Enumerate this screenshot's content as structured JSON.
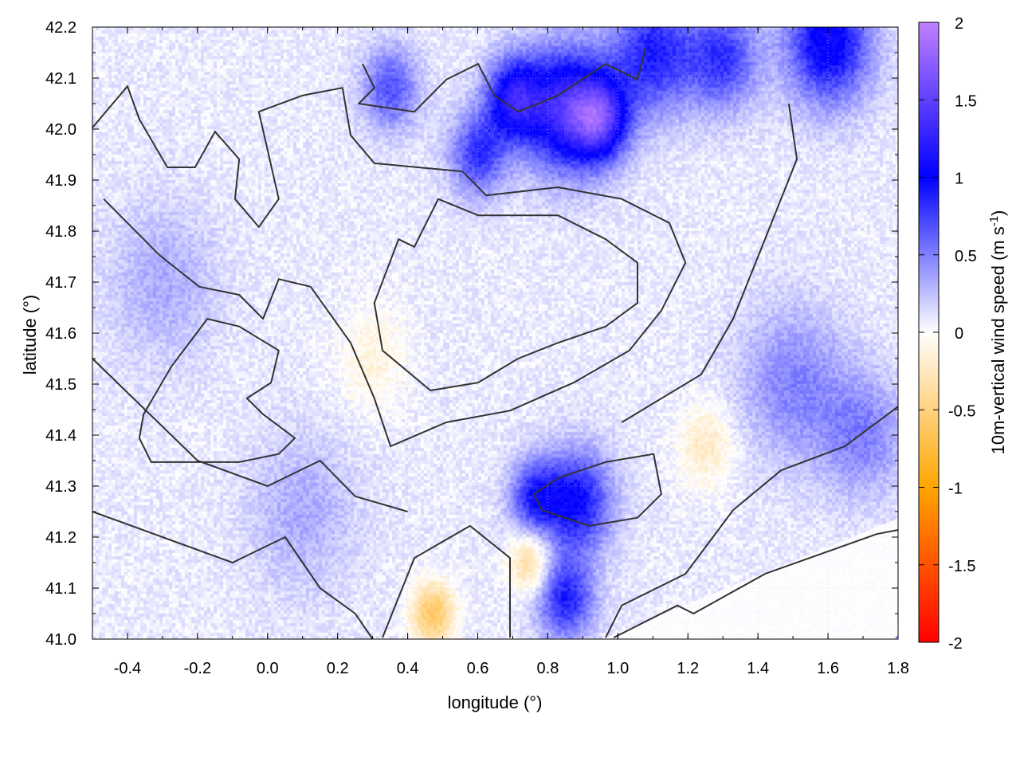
{
  "chart_data": {
    "type": "heatmap",
    "xlabel": "longitude (°)",
    "ylabel": "latitude (°)",
    "colorbar_label": "10m-vertical wind speed (m s",
    "colorbar_label_sup": "-1",
    "colorbar_label_end": ")",
    "xlim": [
      -0.5,
      1.8
    ],
    "ylim": [
      41.0,
      42.2
    ],
    "clim": [
      -2,
      2
    ],
    "grid": true,
    "xticks": [
      "-0.4",
      "-0.2",
      "0.0",
      "0.2",
      "0.4",
      "0.6",
      "0.8",
      "1.0",
      "1.2",
      "1.4",
      "1.6",
      "1.8"
    ],
    "xtick_values": [
      -0.4,
      -0.2,
      0.0,
      0.2,
      0.4,
      0.6,
      0.8,
      1.0,
      1.2,
      1.4,
      1.6,
      1.8
    ],
    "yticks": [
      "41.0",
      "41.1",
      "41.2",
      "41.3",
      "41.4",
      "41.5",
      "41.6",
      "41.7",
      "41.8",
      "41.9",
      "42.0",
      "42.1",
      "42.2"
    ],
    "ytick_values": [
      41.0,
      41.1,
      41.2,
      41.3,
      41.4,
      41.5,
      41.6,
      41.7,
      41.8,
      41.9,
      42.0,
      42.1,
      42.2
    ],
    "colorbar_ticks": [
      "2",
      "1.5",
      "1",
      "0.5",
      "0",
      "-0.5",
      "-1",
      "-1.5",
      "-2"
    ],
    "colorbar_tick_values": [
      2,
      1.5,
      1,
      0.5,
      0,
      -0.5,
      -1,
      -1.5,
      -2
    ],
    "colormap": [
      {
        "value": -2,
        "color": "#ff0000"
      },
      {
        "value": -1,
        "color": "#ffa500"
      },
      {
        "value": 0,
        "color": "#ffffff"
      },
      {
        "value": 1,
        "color": "#0000ff"
      },
      {
        "value": 2,
        "color": "#bf80ff"
      }
    ],
    "contour_color": "#333333",
    "field_features": [
      {
        "lon": 0.85,
        "lat": 42.04,
        "value": 1.2,
        "extent": 0.12
      },
      {
        "lon": 0.7,
        "lat": 42.06,
        "value": 1.0,
        "extent": 0.08
      },
      {
        "lon": 0.95,
        "lat": 42.02,
        "value": 1.1,
        "extent": 0.08
      },
      {
        "lon": 1.1,
        "lat": 42.15,
        "value": 0.8,
        "extent": 0.12
      },
      {
        "lon": 1.3,
        "lat": 42.14,
        "value": 0.7,
        "extent": 0.1
      },
      {
        "lon": 1.6,
        "lat": 42.17,
        "value": 1.0,
        "extent": 0.12
      },
      {
        "lon": 0.35,
        "lat": 42.08,
        "value": 0.6,
        "extent": 0.08
      },
      {
        "lon": 0.6,
        "lat": 41.95,
        "value": 0.7,
        "extent": 0.08
      },
      {
        "lon": 0.88,
        "lat": 41.27,
        "value": 0.9,
        "extent": 0.1
      },
      {
        "lon": 0.76,
        "lat": 41.28,
        "value": 0.7,
        "extent": 0.07
      },
      {
        "lon": 0.85,
        "lat": 41.08,
        "value": 0.8,
        "extent": 0.08
      },
      {
        "lon": 1.5,
        "lat": 41.5,
        "value": 0.4,
        "extent": 0.15
      },
      {
        "lon": 1.7,
        "lat": 41.4,
        "value": 0.4,
        "extent": 0.12
      },
      {
        "lon": -0.3,
        "lat": 41.7,
        "value": 0.25,
        "extent": 0.15
      },
      {
        "lon": 0.1,
        "lat": 41.25,
        "value": 0.25,
        "extent": 0.15
      },
      {
        "lon": 0.47,
        "lat": 41.05,
        "value": -0.7,
        "extent": 0.06
      },
      {
        "lon": 0.75,
        "lat": 41.15,
        "value": -0.5,
        "extent": 0.06
      },
      {
        "lon": 0.3,
        "lat": 41.55,
        "value": -0.2,
        "extent": 0.1
      },
      {
        "lon": 1.25,
        "lat": 41.38,
        "value": -0.3,
        "extent": 0.08
      }
    ],
    "contours": [
      [
        [
          0.328,
          41.566
        ],
        [
          0.305,
          41.659
        ],
        [
          0.374,
          41.784
        ],
        [
          0.419,
          41.769
        ],
        [
          0.487,
          41.863
        ],
        [
          0.601,
          41.831
        ],
        [
          0.829,
          41.831
        ],
        [
          0.965,
          41.784
        ],
        [
          1.056,
          41.738
        ],
        [
          1.056,
          41.659
        ],
        [
          0.965,
          41.613
        ],
        [
          0.829,
          41.581
        ],
        [
          0.715,
          41.55
        ],
        [
          0.601,
          41.503
        ],
        [
          0.465,
          41.4875
        ],
        [
          0.328,
          41.566
        ]
      ],
      [
        [
          -0.5,
          42.003
        ],
        [
          -0.4,
          42.084
        ],
        [
          -0.366,
          42.019
        ],
        [
          -0.286,
          41.925
        ],
        [
          -0.207,
          41.925
        ],
        [
          -0.15,
          41.995
        ],
        [
          -0.081,
          41.941
        ],
        [
          -0.093,
          41.863
        ],
        [
          -0.025,
          41.808
        ],
        [
          0.032,
          41.863
        ],
        [
          -0.025,
          42.034
        ],
        [
          0.1,
          42.066
        ],
        [
          0.214,
          42.081
        ],
        [
          0.237,
          41.988
        ],
        [
          0.305,
          41.933
        ],
        [
          0.556,
          41.917
        ],
        [
          0.624,
          41.87
        ],
        [
          0.829,
          41.886
        ],
        [
          1.011,
          41.863
        ],
        [
          1.147,
          41.816
        ],
        [
          1.193,
          41.738
        ],
        [
          1.124,
          41.644
        ],
        [
          1.033,
          41.566
        ],
        [
          0.874,
          41.503
        ],
        [
          0.692,
          41.448
        ],
        [
          0.51,
          41.425
        ],
        [
          0.351,
          41.378
        ],
        [
          0.305,
          41.472
        ],
        [
          0.237,
          41.581
        ],
        [
          0.123,
          41.691
        ],
        [
          0.032,
          41.706
        ],
        [
          -0.013,
          41.628
        ],
        [
          -0.081,
          41.675
        ],
        [
          -0.195,
          41.691
        ],
        [
          -0.309,
          41.753
        ],
        [
          -0.468,
          41.863
        ]
      ],
      [
        [
          -0.354,
          41.441
        ],
        [
          -0.275,
          41.534
        ],
        [
          -0.172,
          41.628
        ],
        [
          -0.081,
          41.613
        ],
        [
          0.032,
          41.566
        ],
        [
          0.01,
          41.503
        ],
        [
          -0.059,
          41.472
        ],
        [
          -0.013,
          41.441
        ],
        [
          0.078,
          41.394
        ],
        [
          0.032,
          41.363
        ],
        [
          -0.081,
          41.347
        ],
        [
          -0.218,
          41.347
        ],
        [
          -0.332,
          41.347
        ],
        [
          -0.366,
          41.394
        ],
        [
          -0.354,
          41.441
        ]
      ],
      [
        [
          0.965,
          41.003
        ],
        [
          1.011,
          41.066
        ],
        [
          1.193,
          41.128
        ],
        [
          1.329,
          41.253
        ],
        [
          1.466,
          41.331
        ],
        [
          1.648,
          41.378
        ],
        [
          1.8,
          41.456
        ]
      ],
      [
        [
          0.988,
          41.003
        ],
        [
          1.17,
          41.066
        ],
        [
          1.216,
          41.05
        ],
        [
          1.42,
          41.128
        ],
        [
          1.739,
          41.206
        ],
        [
          1.8,
          41.214
        ]
      ],
      [
        [
          0.271,
          42.128
        ],
        [
          0.305,
          42.081
        ],
        [
          0.26,
          42.05
        ],
        [
          0.419,
          42.034
        ],
        [
          0.51,
          42.097
        ],
        [
          0.601,
          42.128
        ],
        [
          0.647,
          42.066
        ],
        [
          0.715,
          42.034
        ],
        [
          0.829,
          42.066
        ],
        [
          0.965,
          42.128
        ],
        [
          1.056,
          42.097
        ],
        [
          1.079,
          42.159
        ]
      ],
      [
        [
          0.76,
          41.284
        ],
        [
          0.829,
          41.316
        ],
        [
          0.965,
          41.347
        ],
        [
          1.102,
          41.363
        ],
        [
          1.124,
          41.284
        ],
        [
          1.056,
          41.238
        ],
        [
          0.919,
          41.222
        ],
        [
          0.783,
          41.253
        ],
        [
          0.76,
          41.284
        ]
      ],
      [
        [
          0.328,
          41.003
        ],
        [
          0.419,
          41.159
        ],
        [
          0.578,
          41.222
        ],
        [
          0.692,
          41.159
        ],
        [
          0.692,
          41.003
        ]
      ],
      [
        [
          1.488,
          42.05
        ],
        [
          1.511,
          41.941
        ],
        [
          1.42,
          41.784
        ],
        [
          1.329,
          41.628
        ],
        [
          1.238,
          41.519
        ],
        [
          1.011,
          41.425
        ]
      ],
      [
        [
          -0.5,
          41.25
        ],
        [
          -0.3,
          41.2
        ],
        [
          -0.1,
          41.15
        ],
        [
          0.05,
          41.2
        ],
        [
          0.15,
          41.1
        ],
        [
          0.25,
          41.05
        ],
        [
          0.3,
          41.0
        ]
      ],
      [
        [
          -0.5,
          41.55
        ],
        [
          -0.35,
          41.45
        ],
        [
          -0.2,
          41.35
        ],
        [
          0.0,
          41.3
        ],
        [
          0.15,
          41.35
        ],
        [
          0.25,
          41.28
        ],
        [
          0.4,
          41.25
        ]
      ]
    ]
  }
}
